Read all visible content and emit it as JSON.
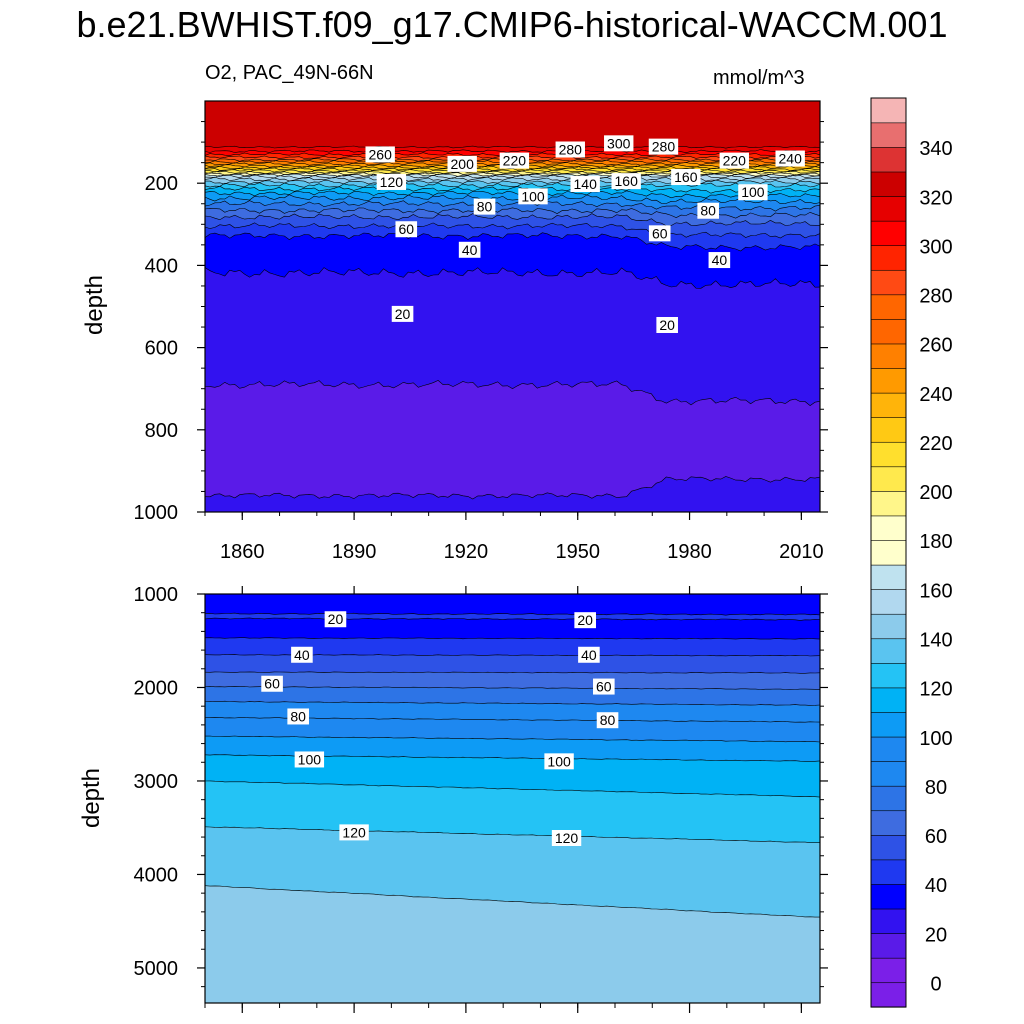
{
  "title": "b.e21.BWHIST.f09_g17.CMIP6-historical-WACCM.001",
  "variable_label": "O2, PAC_49N-66N",
  "units": "mmol/m^3",
  "colors": {
    "levels": [
      "#7b1fe8",
      "#5a1be8",
      "#3212f0",
      "#0000ff",
      "#1f39f0",
      "#2e52e6",
      "#3e6ce0",
      "#2d74e6",
      "#1e88f0",
      "#0d9bf5",
      "#00b2f5",
      "#24c3f5",
      "#5ac4f0",
      "#8ccbeb",
      "#b1d8ef",
      "#bfe2ef",
      "#ffffcc",
      "#fff68a",
      "#ffe94d",
      "#ffdf2d",
      "#ffc914",
      "#ffb40a",
      "#ff9a00",
      "#ff8000",
      "#ff6600",
      "#ff4a14",
      "#ff2400",
      "#ff0000",
      "#e60000",
      "#cc0000",
      "#dd3333",
      "#e86f6f",
      "#f5b5b5"
    ]
  },
  "chart_data": [
    {
      "type": "heatmap",
      "panel": "upper",
      "x_ticks": [
        "1860",
        "1890",
        "1920",
        "1950",
        "1980",
        "2010"
      ],
      "x_tick_values": [
        1860,
        1890,
        1920,
        1950,
        1980,
        2010
      ],
      "xlim": [
        1850,
        2015
      ],
      "ylabel": "depth",
      "y_ticks": [
        "200",
        "400",
        "600",
        "800",
        "1000"
      ],
      "y_tick_values": [
        200,
        400,
        600,
        800,
        1000
      ],
      "ylim": [
        0,
        1000
      ],
      "y_inverted": true,
      "contour_labels": [
        {
          "text": "260",
          "x": 1897,
          "y": 130
        },
        {
          "text": "200",
          "x": 1919,
          "y": 153
        },
        {
          "text": "220",
          "x": 1933,
          "y": 145
        },
        {
          "text": "280",
          "x": 1948,
          "y": 118
        },
        {
          "text": "300",
          "x": 1961,
          "y": 103
        },
        {
          "text": "280",
          "x": 1973,
          "y": 111
        },
        {
          "text": "220",
          "x": 1992,
          "y": 145
        },
        {
          "text": "240",
          "x": 2007,
          "y": 140
        },
        {
          "text": "120",
          "x": 1900,
          "y": 197
        },
        {
          "text": "100",
          "x": 1938,
          "y": 232
        },
        {
          "text": "140",
          "x": 1952,
          "y": 202
        },
        {
          "text": "160",
          "x": 1963,
          "y": 195
        },
        {
          "text": "160",
          "x": 1979,
          "y": 185
        },
        {
          "text": "100",
          "x": 1997,
          "y": 222
        },
        {
          "text": "80",
          "x": 1925,
          "y": 257
        },
        {
          "text": "80",
          "x": 1985,
          "y": 267
        },
        {
          "text": "60",
          "x": 1904,
          "y": 312
        },
        {
          "text": "60",
          "x": 1972,
          "y": 322
        },
        {
          "text": "40",
          "x": 1921,
          "y": 362
        },
        {
          "text": "40",
          "x": 1988,
          "y": 387
        },
        {
          "text": "20",
          "x": 1903,
          "y": 518
        },
        {
          "text": "20",
          "x": 1974,
          "y": 545
        }
      ]
    },
    {
      "type": "heatmap",
      "panel": "lower",
      "ylabel": "depth",
      "y_ticks": [
        "1000",
        "2000",
        "3000",
        "4000",
        "5000"
      ],
      "y_tick_values": [
        1000,
        2000,
        3000,
        4000,
        5000
      ],
      "ylim": [
        1000,
        5375
      ],
      "xlim": [
        1850,
        2015
      ],
      "y_inverted": true,
      "contour_labels": [
        {
          "text": "20",
          "x": 1885,
          "y": 1270
        },
        {
          "text": "20",
          "x": 1952,
          "y": 1280
        },
        {
          "text": "40",
          "x": 1876,
          "y": 1650
        },
        {
          "text": "40",
          "x": 1953,
          "y": 1650
        },
        {
          "text": "60",
          "x": 1868,
          "y": 1960
        },
        {
          "text": "60",
          "x": 1957,
          "y": 1990
        },
        {
          "text": "80",
          "x": 1875,
          "y": 2310
        },
        {
          "text": "80",
          "x": 1958,
          "y": 2350
        },
        {
          "text": "100",
          "x": 1878,
          "y": 2770
        },
        {
          "text": "100",
          "x": 1945,
          "y": 2790
        },
        {
          "text": "120",
          "x": 1890,
          "y": 3550
        },
        {
          "text": "120",
          "x": 1947,
          "y": 3610
        }
      ]
    },
    {
      "type": "colorbar",
      "tick_labels": [
        "0",
        "20",
        "40",
        "60",
        "80",
        "100",
        "120",
        "140",
        "160",
        "180",
        "200",
        "220",
        "240",
        "260",
        "280",
        "300",
        "320",
        "340"
      ],
      "tick_values": [
        0,
        20,
        40,
        60,
        80,
        100,
        120,
        140,
        160,
        180,
        200,
        220,
        240,
        260,
        280,
        300,
        320,
        340
      ],
      "levels_min": -10,
      "levels_step": 10,
      "level_count": 37
    }
  ]
}
